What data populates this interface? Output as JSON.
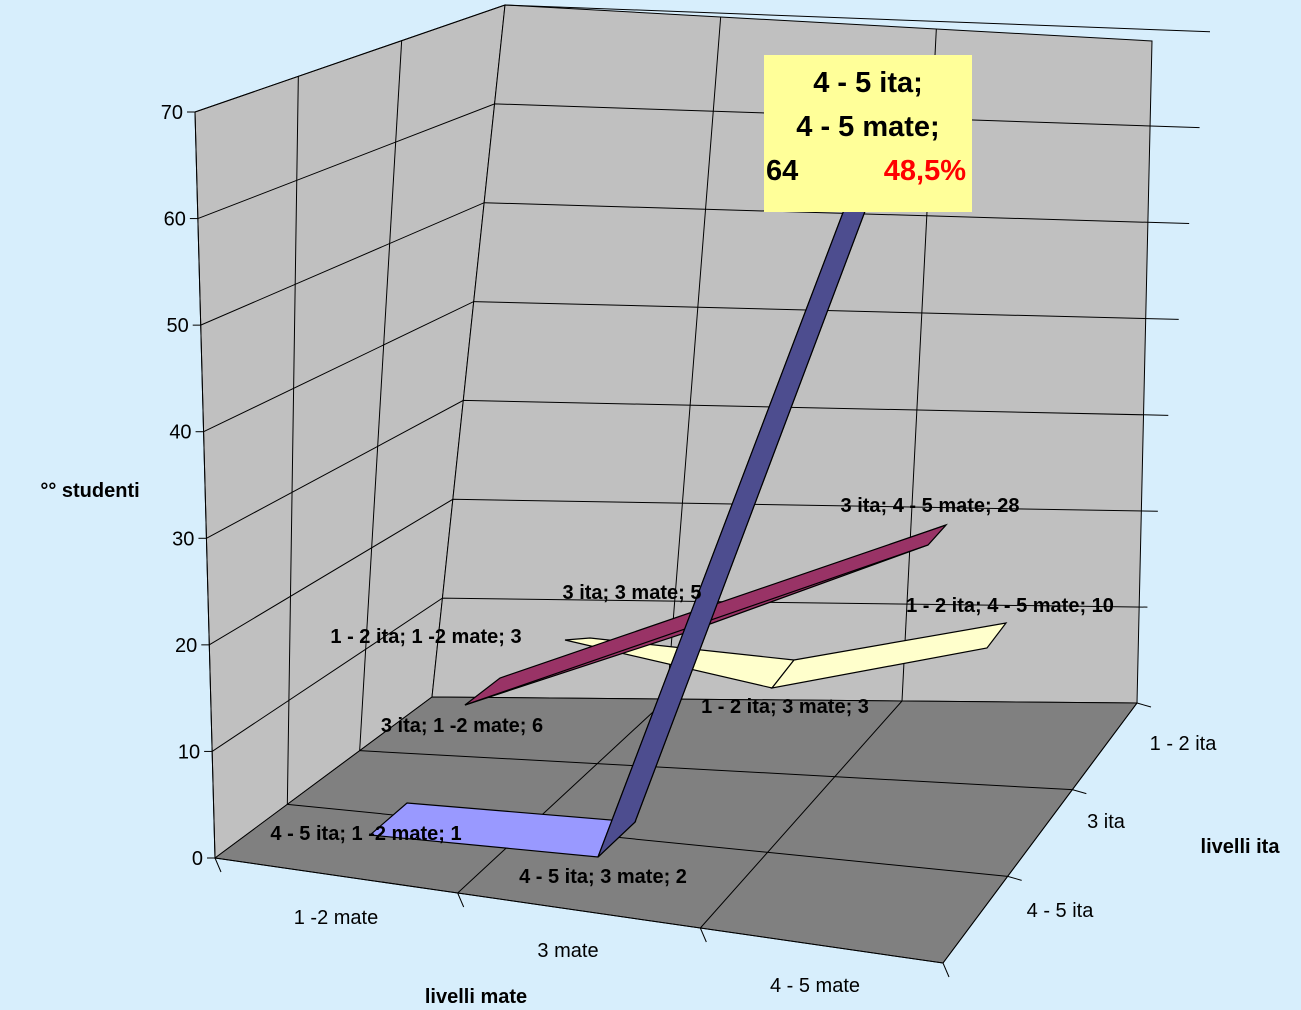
{
  "chart_data": {
    "type": "line3d",
    "xlabel": "livelli mate",
    "ylabel": "°° studenti",
    "zlabel": "livelli ita",
    "ylim": [
      0,
      70
    ],
    "yticks": [
      "0",
      "10",
      "20",
      "30",
      "40",
      "50",
      "60",
      "70"
    ],
    "x_categories": [
      "1 -2 mate",
      "3 mate",
      "4 - 5 mate"
    ],
    "z_categories": [
      "1 - 2 ita",
      "3 ita",
      "4 - 5 ita"
    ],
    "series": [
      {
        "name": "1 - 2 ita",
        "color": "#ffffcc",
        "values": [
          3,
          3,
          10
        ],
        "labels": [
          "1 - 2 ita; 1 -2 mate; 3",
          "1 - 2 ita; 3 mate; 3",
          "1 - 2 ita; 4 - 5 mate; 10"
        ]
      },
      {
        "name": "3 ita",
        "color": "#993366",
        "values": [
          6,
          5,
          28
        ],
        "labels": [
          "3 ita; 1 -2 mate; 6",
          "3 ita; 3 mate; 5",
          "3 ita; 4 - 5 mate; 28"
        ]
      },
      {
        "name": "4 - 5 ita",
        "color": "#9999ff",
        "values": [
          1,
          2,
          64
        ],
        "labels": [
          "4 - 5 ita; 1 -2 mate; 1",
          "4 - 5 ita; 3 mate; 2",
          null
        ]
      }
    ],
    "callout": {
      "line1": "4 - 5 ita;",
      "line2": "4 - 5 mate;",
      "count": "64",
      "percent": "48,5%"
    }
  }
}
